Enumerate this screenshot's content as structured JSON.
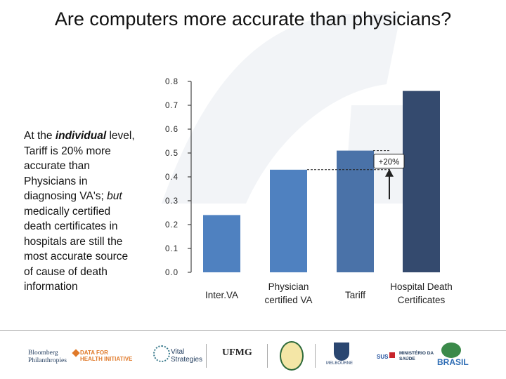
{
  "title": "Are computers more accurate than physicians?",
  "description": {
    "p1": "At the ",
    "em1": "individual",
    "p2": " level, Tariff is 20% more accurate than Physicians in diagnosing VA's; ",
    "em2": "but",
    "p3": " medically certified death certificates in hospitals are still the most accurate source of cause of death information"
  },
  "colors": {
    "bar1": "#4f81c0",
    "bar2": "#4f81c0",
    "bar3": "#4a72a8",
    "bar4": "#344a6e",
    "axis": "#222222",
    "watermark": "#f2f4f7"
  },
  "chart_data": {
    "type": "bar",
    "categories": [
      "Inter.VA",
      "Physician certified VA",
      "Tariff",
      "Hospital Death Certificates"
    ],
    "category_lines": [
      [
        "Inter.VA"
      ],
      [
        "Physician",
        "certified VA"
      ],
      [
        "Tariff"
      ],
      [
        "Hospital Death",
        "Certificates"
      ]
    ],
    "values": [
      0.24,
      0.43,
      0.51,
      0.76
    ],
    "ylim": [
      0,
      0.8
    ],
    "yticks": [
      0.8,
      0.7,
      0.6,
      0.5,
      0.4,
      0.3,
      0.2,
      0.1,
      0.0
    ],
    "ytick_labels": [
      "0.8",
      "0.7",
      "0.6",
      "0.5",
      "0.4",
      "0.3",
      "0.2",
      "0.1",
      "0.0"
    ],
    "annotation": {
      "text": "+20%",
      "from_value": 0.43,
      "to_value": 0.51
    },
    "grid": false
  },
  "footer": {
    "logos": [
      {
        "name": "bloomberg",
        "lines": [
          "Bloomberg",
          "Philanthropies"
        ]
      },
      {
        "name": "data-for-health",
        "lines": [
          "DATA FOR",
          "HEALTH INITIATIVE"
        ]
      },
      {
        "name": "vital-strategies",
        "lines": [
          "Vital",
          "Strategies"
        ]
      },
      {
        "name": "ufmg",
        "lines": [
          "UFMG"
        ]
      },
      {
        "name": "melbourne",
        "lines": [
          "MELBOURNE"
        ]
      },
      {
        "name": "sus",
        "lines": [
          "SUS"
        ]
      },
      {
        "name": "ministerio-saude",
        "lines": [
          "MINISTÉRIO DA",
          "SAÚDE"
        ]
      },
      {
        "name": "brasil",
        "lines": [
          "BRASIL"
        ]
      }
    ]
  }
}
